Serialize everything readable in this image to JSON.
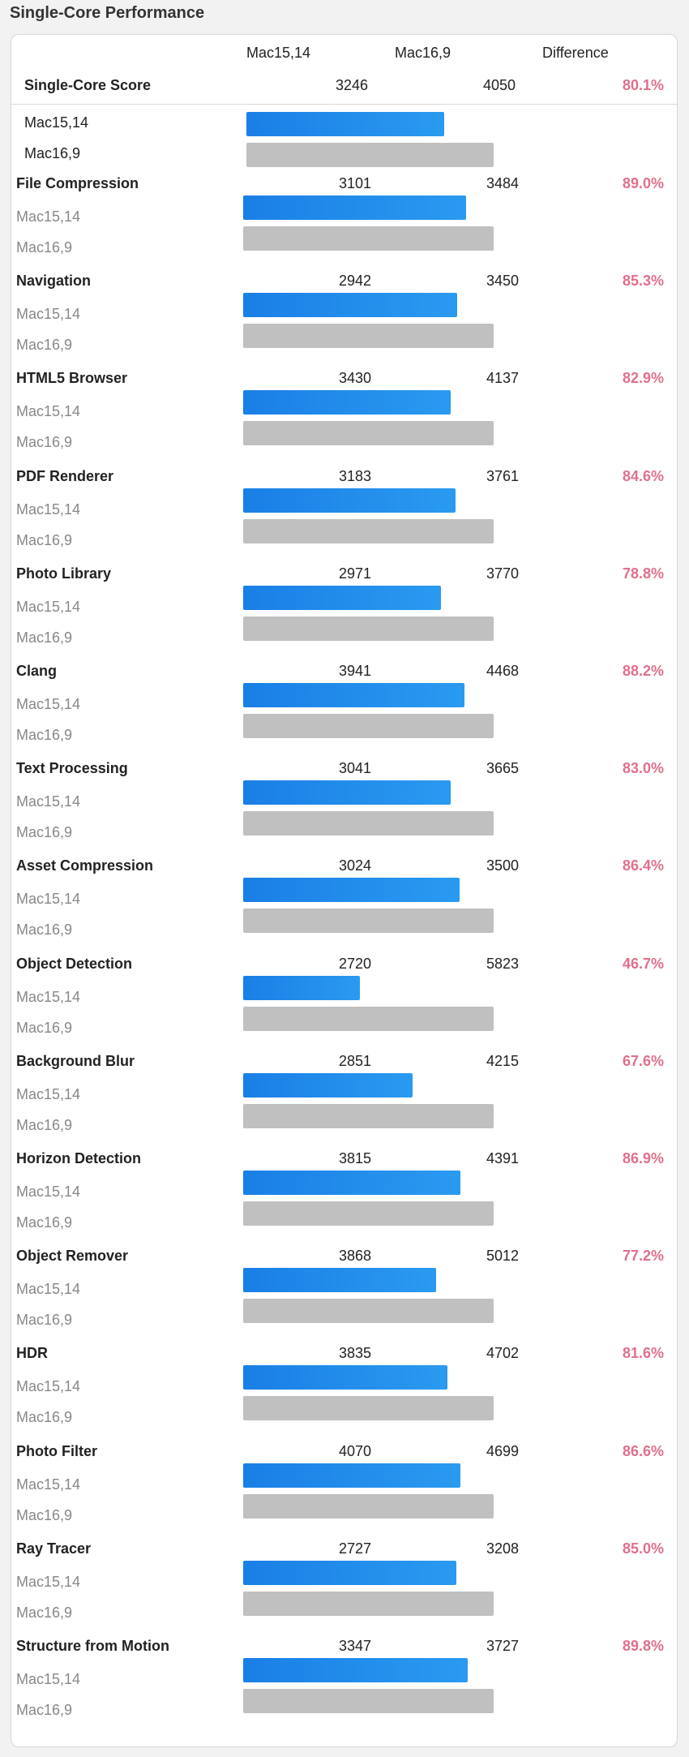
{
  "title": "Single-Core Performance",
  "columns": {
    "device_a": "Mac15,14",
    "device_b": "Mac16,9",
    "difference": "Difference"
  },
  "summary": {
    "label": "Single-Core Score",
    "a": 3246,
    "b": 4050,
    "diff": "80.1%",
    "ratio": 0.801,
    "device_a_label": "Mac15,14",
    "device_b_label": "Mac16,9"
  },
  "device_a_label": "Mac15,14",
  "device_b_label": "Mac16,9",
  "accent_blue": "#1a7fe6",
  "bar_gray": "#c0c0c0",
  "diff_color": "#e0708b",
  "tests": [
    {
      "name": "File Compression",
      "a": 3101,
      "b": 3484,
      "diff": "89.0%"
    },
    {
      "name": "Navigation",
      "a": 2942,
      "b": 3450,
      "diff": "85.3%"
    },
    {
      "name": "HTML5 Browser",
      "a": 3430,
      "b": 4137,
      "diff": "82.9%"
    },
    {
      "name": "PDF Renderer",
      "a": 3183,
      "b": 3761,
      "diff": "84.6%"
    },
    {
      "name": "Photo Library",
      "a": 2971,
      "b": 3770,
      "diff": "78.8%"
    },
    {
      "name": "Clang",
      "a": 3941,
      "b": 4468,
      "diff": "88.2%"
    },
    {
      "name": "Text Processing",
      "a": 3041,
      "b": 3665,
      "diff": "83.0%"
    },
    {
      "name": "Asset Compression",
      "a": 3024,
      "b": 3500,
      "diff": "86.4%"
    },
    {
      "name": "Object Detection",
      "a": 2720,
      "b": 5823,
      "diff": "46.7%"
    },
    {
      "name": "Background Blur",
      "a": 2851,
      "b": 4215,
      "diff": "67.6%"
    },
    {
      "name": "Horizon Detection",
      "a": 3815,
      "b": 4391,
      "diff": "86.9%"
    },
    {
      "name": "Object Remover",
      "a": 3868,
      "b": 5012,
      "diff": "77.2%"
    },
    {
      "name": "HDR",
      "a": 3835,
      "b": 4702,
      "diff": "81.6%"
    },
    {
      "name": "Photo Filter",
      "a": 4070,
      "b": 4699,
      "diff": "86.6%"
    },
    {
      "name": "Ray Tracer",
      "a": 2727,
      "b": 3208,
      "diff": "85.0%"
    },
    {
      "name": "Structure from Motion",
      "a": 3347,
      "b": 3727,
      "diff": "89.8%"
    }
  ]
}
